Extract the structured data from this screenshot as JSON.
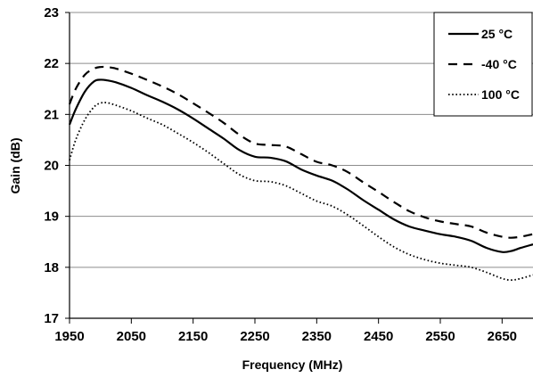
{
  "chart_data": {
    "type": "line",
    "xlabel": "Frequency (MHz)",
    "ylabel": "Gain (dB)",
    "xlim": [
      1950,
      2700
    ],
    "ylim": [
      17,
      23
    ],
    "xticks": [
      1950,
      2050,
      2150,
      2250,
      2350,
      2450,
      2550,
      2650
    ],
    "yticks": [
      17,
      18,
      19,
      20,
      21,
      22,
      23
    ],
    "grid": "horizontal",
    "legend_position": "top-right",
    "series": [
      {
        "name": "25 °C",
        "style": "solid",
        "x": [
          1950,
          1960,
          1975,
          1990,
          2000,
          2010,
          2025,
          2050,
          2075,
          2100,
          2125,
          2150,
          2175,
          2200,
          2225,
          2250,
          2275,
          2300,
          2325,
          2350,
          2375,
          2400,
          2425,
          2450,
          2475,
          2500,
          2525,
          2550,
          2575,
          2600,
          2625,
          2650,
          2665,
          2680,
          2700
        ],
        "y": [
          20.8,
          21.1,
          21.45,
          21.65,
          21.68,
          21.67,
          21.63,
          21.52,
          21.38,
          21.25,
          21.1,
          20.92,
          20.72,
          20.52,
          20.3,
          20.17,
          20.15,
          20.08,
          19.92,
          19.8,
          19.7,
          19.53,
          19.32,
          19.13,
          18.94,
          18.8,
          18.72,
          18.65,
          18.6,
          18.52,
          18.38,
          18.3,
          18.32,
          18.38,
          18.45
        ]
      },
      {
        "name": "-40 °C",
        "style": "dashed",
        "x": [
          1950,
          1960,
          1975,
          1990,
          2000,
          2010,
          2025,
          2050,
          2075,
          2100,
          2125,
          2150,
          2175,
          2200,
          2225,
          2250,
          2275,
          2300,
          2325,
          2350,
          2375,
          2400,
          2425,
          2450,
          2475,
          2500,
          2525,
          2550,
          2575,
          2600,
          2625,
          2650,
          2665,
          2680,
          2700
        ],
        "y": [
          21.2,
          21.5,
          21.78,
          21.9,
          21.93,
          21.93,
          21.9,
          21.8,
          21.68,
          21.55,
          21.4,
          21.22,
          21.03,
          20.83,
          20.6,
          20.43,
          20.4,
          20.37,
          20.22,
          20.07,
          20.0,
          19.87,
          19.67,
          19.48,
          19.28,
          19.1,
          18.98,
          18.9,
          18.85,
          18.8,
          18.68,
          18.6,
          18.58,
          18.6,
          18.65
        ]
      },
      {
        "name": "100 °C",
        "style": "dotted",
        "x": [
          1950,
          1960,
          1975,
          1990,
          2000,
          2010,
          2025,
          2050,
          2075,
          2100,
          2125,
          2150,
          2175,
          2200,
          2225,
          2250,
          2275,
          2300,
          2325,
          2350,
          2375,
          2400,
          2425,
          2450,
          2475,
          2500,
          2525,
          2550,
          2575,
          2600,
          2625,
          2650,
          2665,
          2680,
          2700
        ],
        "y": [
          20.1,
          20.5,
          20.9,
          21.15,
          21.22,
          21.23,
          21.18,
          21.07,
          20.93,
          20.8,
          20.63,
          20.45,
          20.25,
          20.03,
          19.82,
          19.7,
          19.68,
          19.6,
          19.45,
          19.3,
          19.2,
          19.03,
          18.82,
          18.6,
          18.4,
          18.25,
          18.15,
          18.08,
          18.04,
          18.0,
          17.9,
          17.78,
          17.75,
          17.78,
          17.85
        ]
      }
    ]
  }
}
